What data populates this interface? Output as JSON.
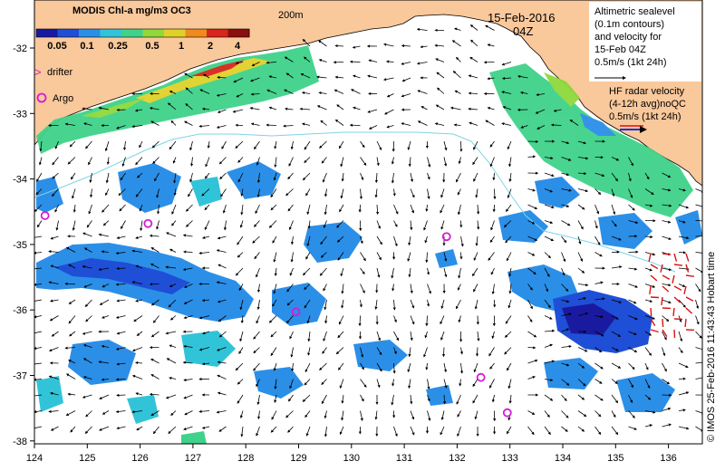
{
  "colorbar": {
    "title": "MODIS Chl-a mg/m3 OC3",
    "ticks": [
      "0.05",
      "0.1",
      "0.25",
      "0.5",
      "1",
      "2",
      "4"
    ],
    "colors": [
      "#1a1aa0",
      "#1f4fd6",
      "#2b8fe8",
      "#31c4d8",
      "#3fd28a",
      "#8fd93a",
      "#e0d12a",
      "#f08a1c",
      "#d7261b",
      "#8a0f0f"
    ]
  },
  "isobath_label": "200m",
  "date": {
    "line1": "15-Feb-2016",
    "line2": "04Z"
  },
  "legend_altimetric": {
    "lines": [
      "Altimetric sealevel",
      "(0.1m contours)",
      "and velocity for",
      "15-Feb 04Z",
      "0.5m/s (1kt 24h)"
    ]
  },
  "legend_hf": {
    "lines": [
      "HF radar velocity",
      "(4-12h avg)noQC",
      "0.5m/s (1kt 24h)"
    ]
  },
  "legend_markers": {
    "drifter": "drifter",
    "argo": "Argo"
  },
  "x_ticks": [
    "124",
    "125",
    "126",
    "127",
    "128",
    "129",
    "130",
    "131",
    "132",
    "133",
    "134",
    "135",
    "136"
  ],
  "y_ticks": [
    "-32",
    "-33",
    "-34",
    "-35",
    "-36",
    "-37",
    "-38"
  ],
  "credit": "© IMOS 25-Feb-2016 11:43:43 Hobart time",
  "argo_floats": [
    {
      "lon": 124.2,
      "lat": -34.56
    },
    {
      "lon": 126.15,
      "lat": -34.68
    },
    {
      "lon": 128.95,
      "lat": -36.03
    },
    {
      "lon": 131.8,
      "lat": -34.88
    },
    {
      "lon": 132.45,
      "lat": -37.03
    },
    {
      "lon": 132.95,
      "lat": -37.57
    }
  ],
  "colors": {
    "land": "#f9c89b",
    "coast_line": "#000000",
    "isobath": "#7fd4e6",
    "hf_vector": "#dd1111",
    "hf_legend_vector": "#1530e0",
    "argo": "#d41cd4"
  }
}
